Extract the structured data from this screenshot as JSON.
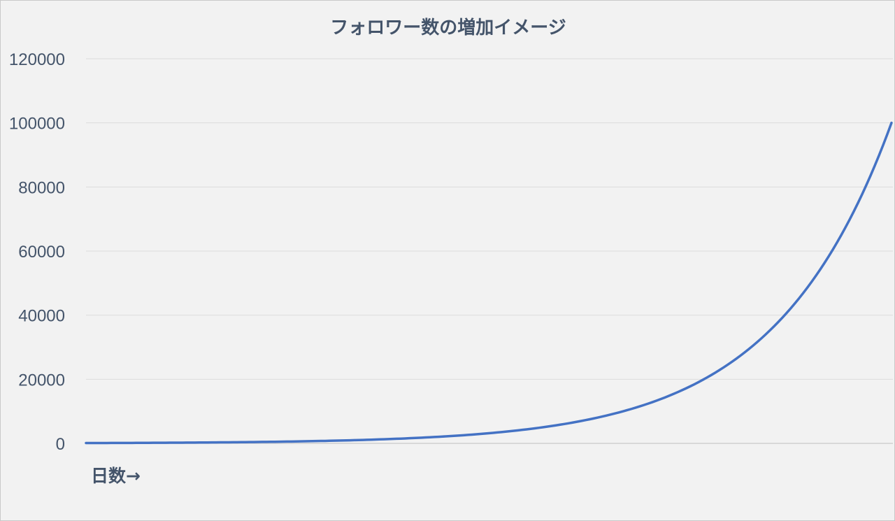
{
  "chart_data": {
    "type": "line",
    "title": "フォロワー数の増加イメージ",
    "xlabel": "日数→",
    "ylabel": "",
    "ylim": [
      0,
      120000
    ],
    "yticks": [
      "0",
      "20000",
      "40000",
      "60000",
      "80000",
      "100000",
      "120000"
    ],
    "grid": true,
    "legend": "none",
    "series": [
      {
        "name": "フォロワー数",
        "color": "#4472c4",
        "x": [
          0,
          5,
          10,
          15,
          20,
          25,
          30,
          35,
          40,
          45,
          50,
          55,
          60,
          65,
          70,
          75,
          80,
          85,
          90,
          95,
          100,
          105,
          110,
          115,
          120
        ],
        "values": [
          100,
          133,
          178,
          237,
          316,
          422,
          562,
          750,
          1000,
          1334,
          1778,
          2372,
          3162,
          4217,
          5623,
          7499,
          10000,
          13335,
          17783,
          23714,
          31623,
          42170,
          56234,
          74989,
          100000
        ]
      }
    ]
  }
}
